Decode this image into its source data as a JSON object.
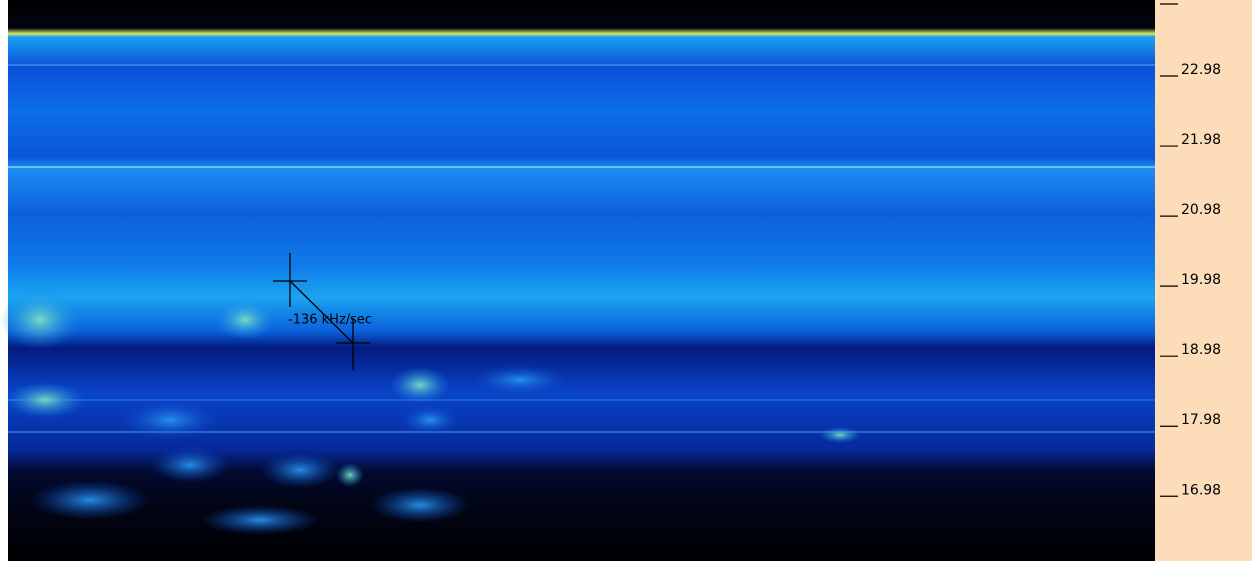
{
  "chart_data": {
    "type": "spectrogram",
    "ylim": [
      15.97,
      23.98
    ],
    "yticks": [
      22.98,
      21.98,
      20.98,
      19.98,
      18.98,
      17.98,
      16.98
    ],
    "annotation": "-136 kHz/sec"
  }
}
